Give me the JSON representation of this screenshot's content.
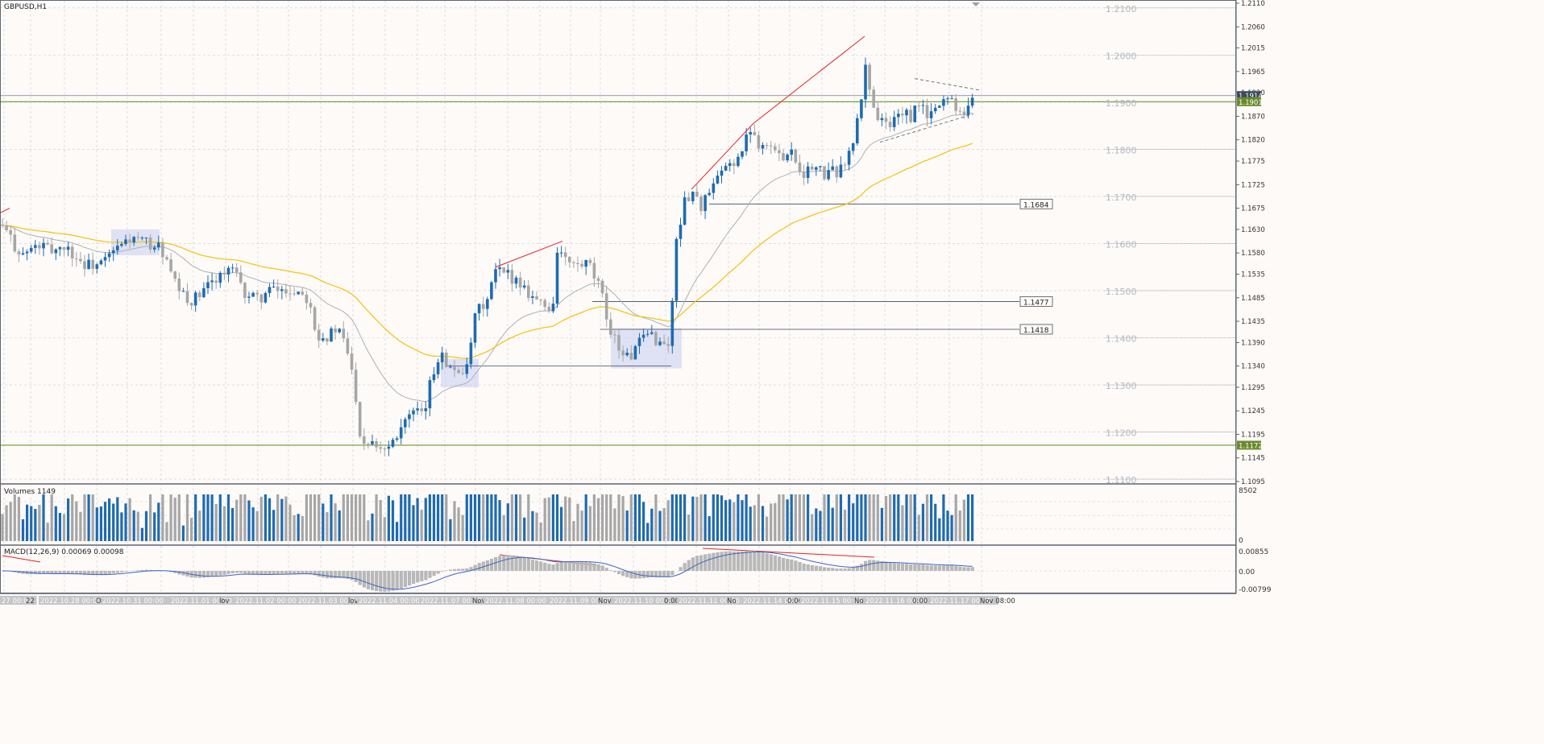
{
  "window": {
    "symbol_label": "GBPUSD,H1",
    "volume_label": "Volumes 1149",
    "volume_axis_max": "8502",
    "volume_axis_min": "0",
    "macd_label": "MACD(12,26,9) 0.00069 0.00098",
    "macd_axis_labels": [
      "0.00855",
      "0.00",
      "-0.00799"
    ]
  },
  "colors": {
    "background": "#fdfaf8",
    "grid": "#c9ccd4",
    "bull": "#1e6bb0",
    "bear": "#a6a6a6",
    "ema_fast": "#a9b1b9",
    "ema_slow": "#f5c518",
    "trend_red": "#e02424",
    "price_line": "#6a9a2c",
    "box": "#c7cdf0",
    "macd_signal": "#3d63c9"
  },
  "chart_data": {
    "type": "candlestick",
    "title": "GBPUSD,H1",
    "ylim": [
      1.1095,
      1.211
    ],
    "y_ticks": [
      "1.2110",
      "1.2060",
      "1.2015",
      "1.1965",
      "1.1920",
      "1.1870",
      "1.1820",
      "1.1775",
      "1.1725",
      "1.1675",
      "1.1630",
      "1.1580",
      "1.1535",
      "1.1485",
      "1.1435",
      "1.1390",
      "1.1340",
      "1.1295",
      "1.1245",
      "1.1195",
      "1.1145",
      "1.1095"
    ],
    "y_marks": [
      "1.2100",
      "1.2000",
      "1.1900",
      "1.1800",
      "1.1700",
      "1.1600",
      "1.1500",
      "1.1400",
      "1.1300",
      "1.1200",
      "1.1100"
    ],
    "x_tick_labels": [
      "27 00:00",
      "22",
      "2022.10.28 00:00",
      "O",
      "2022.10.31 00:00",
      "2022.11.01 00:00",
      "lov",
      "2022.11.02 00:00",
      "2022.11.03 00:00",
      "lov",
      "2022.11.04 00:00",
      "2022.11.07 00:00",
      "Nov",
      "2022.11.08 00:00",
      "2022.11.09 00:00",
      "Nov",
      "2022.11.10 00:00",
      "0:00",
      "2022.11.11 00:00",
      "No",
      "2022.11.14 00:00",
      "0:00",
      "2022.11.15 00:00",
      "No",
      "2022.11.16 00:00",
      "0:00",
      "2022.11.17 00:00",
      "Nov 08:00"
    ],
    "price_tags": [
      {
        "label": "1.1914",
        "value": 1.1914,
        "style": "dark"
      },
      {
        "label": "1.1901",
        "value": 1.1901,
        "style": "green"
      },
      {
        "label": "1.1172",
        "value": 1.1172,
        "style": "green"
      }
    ],
    "level_tags": [
      {
        "label": "1.1684",
        "value": 1.1684
      },
      {
        "label": "1.1477",
        "value": 1.1477
      },
      {
        "label": "1.1418",
        "value": 1.1418
      }
    ],
    "anchors": [
      [
        0,
        1.164
      ],
      [
        10,
        1.162
      ],
      [
        20,
        1.159
      ],
      [
        30,
        1.1575
      ],
      [
        40,
        1.159
      ],
      [
        52,
        1.1595
      ],
      [
        62,
        1.1585
      ],
      [
        80,
        1.1595
      ],
      [
        92,
        1.1575
      ],
      [
        105,
        1.1555
      ],
      [
        125,
        1.1555
      ],
      [
        140,
        1.158
      ],
      [
        160,
        1.161
      ],
      [
        175,
        1.1605
      ],
      [
        200,
        1.159
      ],
      [
        215,
        1.152
      ],
      [
        232,
        1.1475
      ],
      [
        250,
        1.149
      ],
      [
        268,
        1.153
      ],
      [
        290,
        1.1545
      ],
      [
        300,
        1.15
      ],
      [
        318,
        1.148
      ],
      [
        335,
        1.15
      ],
      [
        355,
        1.15
      ],
      [
        372,
        1.15
      ],
      [
        385,
        1.148
      ],
      [
        392,
        1.141
      ],
      [
        405,
        1.14
      ],
      [
        418,
        1.142
      ],
      [
        430,
        1.138
      ],
      [
        440,
        1.13
      ],
      [
        448,
        1.118
      ],
      [
        462,
        1.1185
      ],
      [
        476,
        1.1165
      ],
      [
        490,
        1.119
      ],
      [
        500,
        1.1225
      ],
      [
        515,
        1.124
      ],
      [
        525,
        1.123
      ],
      [
        535,
        1.131
      ],
      [
        548,
        1.138
      ],
      [
        558,
        1.133
      ],
      [
        572,
        1.1335
      ],
      [
        580,
        1.133
      ],
      [
        590,
        1.145
      ],
      [
        605,
        1.148
      ],
      [
        615,
        1.154
      ],
      [
        628,
        1.1535
      ],
      [
        640,
        1.1525
      ],
      [
        655,
        1.15
      ],
      [
        670,
        1.1475
      ],
      [
        685,
        1.1455
      ],
      [
        692,
        1.159
      ],
      [
        700,
        1.1565
      ],
      [
        715,
        1.155
      ],
      [
        730,
        1.1555
      ],
      [
        745,
        1.15
      ],
      [
        755,
        1.143
      ],
      [
        768,
        1.138
      ],
      [
        780,
        1.1355
      ],
      [
        792,
        1.1385
      ],
      [
        808,
        1.141
      ],
      [
        820,
        1.1385
      ],
      [
        832,
        1.139
      ],
      [
        838,
        1.16
      ],
      [
        848,
        1.168
      ],
      [
        858,
        1.1715
      ],
      [
        870,
        1.168
      ],
      [
        882,
        1.171
      ],
      [
        896,
        1.175
      ],
      [
        910,
        1.1775
      ],
      [
        920,
        1.179
      ],
      [
        932,
        1.185
      ],
      [
        940,
        1.1815
      ],
      [
        955,
        1.181
      ],
      [
        968,
        1.178
      ],
      [
        980,
        1.1805
      ],
      [
        995,
        1.175
      ],
      [
        1010,
        1.176
      ],
      [
        1025,
        1.1745
      ],
      [
        1040,
        1.1755
      ],
      [
        1055,
        1.179
      ],
      [
        1062,
        1.184
      ],
      [
        1068,
        1.19
      ],
      [
        1075,
        1.1985
      ],
      [
        1082,
        1.19
      ],
      [
        1092,
        1.186
      ],
      [
        1105,
        1.185
      ],
      [
        1118,
        1.1885
      ],
      [
        1130,
        1.186
      ],
      [
        1140,
        1.19
      ],
      [
        1150,
        1.187
      ],
      [
        1160,
        1.188
      ],
      [
        1170,
        1.191
      ],
      [
        1182,
        1.1905
      ],
      [
        1192,
        1.188
      ],
      [
        1200,
        1.189
      ],
      [
        1208,
        1.191
      ]
    ],
    "red_trendlines": [
      [
        [
          0,
          1.1665
        ],
        [
          12,
          1.1675
        ]
      ],
      [
        [
          858,
          1.1715
        ],
        [
          935,
          1.1855
        ]
      ],
      [
        [
          935,
          1.1855
        ],
        [
          1073,
          1.204
        ]
      ],
      [
        [
          615,
          1.155
        ],
        [
          698,
          1.1605
        ]
      ]
    ],
    "horizontal_segments": [
      {
        "x1": 880,
        "x2": 1265,
        "value": 1.1684
      },
      {
        "x1": 735,
        "x2": 1265,
        "value": 1.1477
      },
      {
        "x1": 745,
        "x2": 1265,
        "value": 1.1418
      },
      {
        "x1": 555,
        "x2": 833,
        "value": 1.134
      }
    ],
    "triangle_lines": [
      [
        [
          1135,
          1.195
        ],
        [
          1218,
          1.1925
        ]
      ],
      [
        [
          1092,
          1.1815
        ],
        [
          1208,
          1.1875
        ]
      ]
    ],
    "boxes": [
      {
        "x1": 138,
        "x2": 198,
        "top": 1.163,
        "bottom": 1.1575
      },
      {
        "x1": 547,
        "x2": 594,
        "top": 1.1355,
        "bottom": 1.1295
      },
      {
        "x1": 758,
        "x2": 846,
        "top": 1.142,
        "bottom": 1.1335
      }
    ]
  }
}
